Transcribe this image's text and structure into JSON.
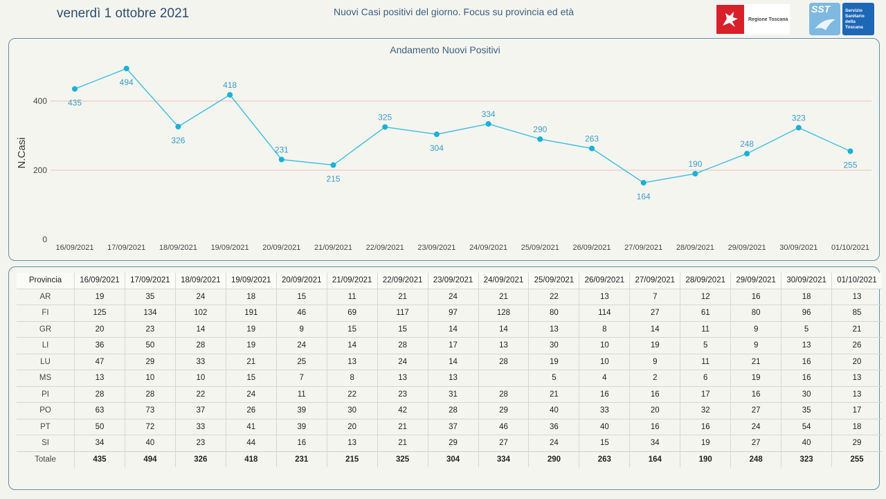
{
  "header": {
    "date": "venerdì 1 ottobre 2021",
    "title": "Nuovi Casi positivi del giorno. Focus su provincia ed età",
    "logo_regione": "Regione Toscana",
    "logo_sst_short": "SST",
    "logo_sst_lines": [
      "Servizio",
      "Sanitario",
      "della",
      "Toscana"
    ]
  },
  "colors": {
    "line": "#47bfe0",
    "point": "#1ab0d8",
    "label": "#3b9ec4",
    "grid": "#f0c0b0"
  },
  "chart_data": {
    "type": "line",
    "title": "Andamento Nuovi Positivi",
    "ylabel": "N.Casi",
    "xlabel": "",
    "ylim": [
      0,
      500
    ],
    "yticks": [
      0,
      200,
      400
    ],
    "categories": [
      "16/09/2021",
      "17/09/2021",
      "18/09/2021",
      "19/09/2021",
      "20/09/2021",
      "21/09/2021",
      "22/09/2021",
      "23/09/2021",
      "24/09/2021",
      "25/09/2021",
      "26/09/2021",
      "27/09/2021",
      "28/09/2021",
      "29/09/2021",
      "30/09/2021",
      "01/10/2021"
    ],
    "values": [
      435,
      494,
      326,
      418,
      231,
      215,
      325,
      304,
      334,
      290,
      263,
      164,
      190,
      248,
      323,
      255
    ],
    "label_pos": [
      "below",
      "below",
      "below",
      "above",
      "above",
      "below",
      "above",
      "below",
      "above",
      "above",
      "above",
      "below",
      "above",
      "above",
      "above",
      "below"
    ]
  },
  "table": {
    "header_label": "Provincia",
    "dates": [
      "16/09/2021",
      "17/09/2021",
      "18/09/2021",
      "19/09/2021",
      "20/09/2021",
      "21/09/2021",
      "22/09/2021",
      "23/09/2021",
      "24/09/2021",
      "25/09/2021",
      "26/09/2021",
      "27/09/2021",
      "28/09/2021",
      "29/09/2021",
      "30/09/2021",
      "01/10/2021"
    ],
    "rows": [
      {
        "prov": "AR",
        "values": [
          "19",
          "35",
          "24",
          "18",
          "15",
          "11",
          "21",
          "24",
          "21",
          "22",
          "13",
          "7",
          "12",
          "16",
          "18",
          "13"
        ]
      },
      {
        "prov": "FI",
        "values": [
          "125",
          "134",
          "102",
          "191",
          "46",
          "69",
          "117",
          "97",
          "128",
          "80",
          "114",
          "27",
          "61",
          "80",
          "96",
          "85"
        ]
      },
      {
        "prov": "GR",
        "values": [
          "20",
          "23",
          "14",
          "19",
          "9",
          "15",
          "15",
          "14",
          "14",
          "13",
          "8",
          "14",
          "11",
          "9",
          "5",
          "21"
        ]
      },
      {
        "prov": "LI",
        "values": [
          "36",
          "50",
          "28",
          "19",
          "24",
          "14",
          "28",
          "17",
          "13",
          "30",
          "10",
          "19",
          "5",
          "9",
          "13",
          "26"
        ]
      },
      {
        "prov": "LU",
        "values": [
          "47",
          "29",
          "33",
          "21",
          "25",
          "13",
          "24",
          "14",
          "28",
          "19",
          "10",
          "9",
          "11",
          "21",
          "16",
          "20"
        ]
      },
      {
        "prov": "MS",
        "values": [
          "13",
          "10",
          "10",
          "15",
          "7",
          "8",
          "13",
          "13",
          "",
          "5",
          "4",
          "2",
          "6",
          "19",
          "16",
          "13"
        ]
      },
      {
        "prov": "PI",
        "values": [
          "28",
          "28",
          "22",
          "24",
          "11",
          "22",
          "23",
          "31",
          "28",
          "21",
          "16",
          "16",
          "17",
          "16",
          "30",
          "13"
        ]
      },
      {
        "prov": "PO",
        "values": [
          "63",
          "73",
          "37",
          "26",
          "39",
          "30",
          "42",
          "28",
          "29",
          "40",
          "33",
          "20",
          "32",
          "27",
          "35",
          "17"
        ]
      },
      {
        "prov": "PT",
        "values": [
          "50",
          "72",
          "33",
          "41",
          "39",
          "20",
          "21",
          "37",
          "46",
          "36",
          "40",
          "16",
          "16",
          "24",
          "54",
          "18"
        ]
      },
      {
        "prov": "SI",
        "values": [
          "34",
          "40",
          "23",
          "44",
          "16",
          "13",
          "21",
          "29",
          "27",
          "24",
          "15",
          "34",
          "19",
          "27",
          "40",
          "29"
        ]
      }
    ],
    "total": {
      "prov": "Totale",
      "values": [
        "435",
        "494",
        "326",
        "418",
        "231",
        "215",
        "325",
        "304",
        "334",
        "290",
        "263",
        "164",
        "190",
        "248",
        "323",
        "255"
      ]
    }
  }
}
